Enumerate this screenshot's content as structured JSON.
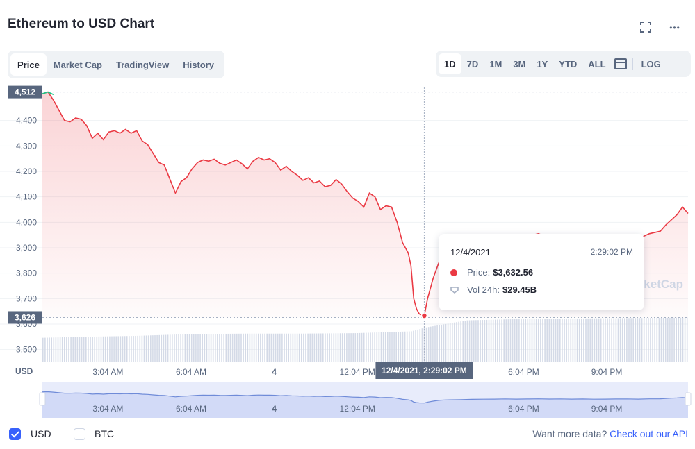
{
  "header": {
    "title": "Ethereum to USD Chart",
    "fullscreen_icon": "fullscreen-icon",
    "more_icon": "more-horizontal-icon",
    "more_glyph": "•••"
  },
  "tabs": [
    {
      "label": "Price",
      "active": true
    },
    {
      "label": "Market Cap",
      "active": false
    },
    {
      "label": "TradingView",
      "active": false
    },
    {
      "label": "History",
      "active": false
    }
  ],
  "ranges": [
    {
      "label": "1D",
      "active": true
    },
    {
      "label": "7D",
      "active": false
    },
    {
      "label": "1M",
      "active": false
    },
    {
      "label": "3M",
      "active": false
    },
    {
      "label": "1Y",
      "active": false
    },
    {
      "label": "YTD",
      "active": false
    },
    {
      "label": "ALL",
      "active": false
    }
  ],
  "calendar_icon": "calendar-icon",
  "log_label": "LOG",
  "tooltip": {
    "date": "12/4/2021",
    "time": "2:29:02 PM",
    "price_label": "Price:",
    "price_value": "$3,632.56",
    "vol_label": "Vol 24h:",
    "vol_value": "$29.45B"
  },
  "watermark": "rketCap",
  "crosshair_label": "12/4/2021, 2:29:02 PM",
  "footer": {
    "currencies": [
      {
        "label": "USD",
        "checked": true
      },
      {
        "label": "BTC",
        "checked": false
      }
    ],
    "more_text": "Want more data?",
    "api_link": "Check out our API"
  },
  "chart_data": {
    "type": "line",
    "y_axis_label": "USD",
    "ylim": [
      3450,
      4530
    ],
    "y_ticks": [
      3500,
      3600,
      3700,
      3800,
      3900,
      4000,
      4100,
      4200,
      4300,
      4400
    ],
    "y_tick_labels": [
      "3,500",
      "3,600",
      "3,700",
      "3,800",
      "3,900",
      "4,000",
      "4,100",
      "4,200",
      "4,300",
      "4,400"
    ],
    "x_range_hours": [
      0.7,
      24
    ],
    "x_ticks": [
      {
        "hour": 3.067,
        "label": "3:04 AM"
      },
      {
        "hour": 6.067,
        "label": "6:04 AM"
      },
      {
        "hour": 9.067,
        "label": "4"
      },
      {
        "hour": 12.067,
        "label": "12:04 PM"
      },
      {
        "hour": 18.067,
        "label": "6:04 PM"
      },
      {
        "hour": 21.067,
        "label": "9:04 PM"
      }
    ],
    "high_label": "4,512",
    "high_value": 4512,
    "low_label": "3,626",
    "low_value": 3626,
    "crosshair_hour": 14.48,
    "series": [
      {
        "name": "Price",
        "x": [
          0.7,
          0.9,
          1.1,
          1.3,
          1.5,
          1.7,
          1.9,
          2.1,
          2.3,
          2.5,
          2.7,
          2.9,
          3.1,
          3.3,
          3.5,
          3.7,
          3.9,
          4.1,
          4.3,
          4.5,
          4.7,
          4.9,
          5.1,
          5.3,
          5.5,
          5.7,
          5.9,
          6.1,
          6.3,
          6.5,
          6.7,
          6.9,
          7.1,
          7.3,
          7.5,
          7.7,
          7.9,
          8.1,
          8.3,
          8.5,
          8.7,
          8.9,
          9.1,
          9.3,
          9.5,
          9.7,
          9.9,
          10.1,
          10.3,
          10.5,
          10.7,
          10.9,
          11.1,
          11.3,
          11.5,
          11.7,
          11.9,
          12.1,
          12.3,
          12.5,
          12.7,
          12.9,
          13.1,
          13.3,
          13.5,
          13.7,
          13.9,
          14.0,
          14.1,
          14.2,
          14.3,
          14.48,
          14.6,
          14.8,
          15.0,
          15.2,
          15.4,
          15.8,
          16.2,
          16.6,
          17.0,
          17.4,
          17.8,
          18.2,
          18.6,
          19.0,
          19.4,
          19.8,
          20.2,
          20.6,
          21.0,
          21.4,
          21.8,
          22.2,
          22.6,
          23.0,
          23.2,
          23.4,
          23.6,
          23.8,
          24.0
        ],
        "values": [
          4505,
          4512,
          4480,
          4440,
          4400,
          4395,
          4410,
          4405,
          4380,
          4330,
          4350,
          4325,
          4355,
          4360,
          4350,
          4365,
          4350,
          4360,
          4320,
          4305,
          4270,
          4235,
          4225,
          4170,
          4115,
          4160,
          4175,
          4210,
          4235,
          4245,
          4240,
          4248,
          4232,
          4225,
          4235,
          4245,
          4230,
          4210,
          4240,
          4255,
          4245,
          4250,
          4235,
          4205,
          4220,
          4200,
          4185,
          4165,
          4175,
          4155,
          4162,
          4140,
          4145,
          4168,
          4150,
          4120,
          4095,
          4082,
          4060,
          4115,
          4100,
          4050,
          4065,
          4060,
          4000,
          3920,
          3880,
          3830,
          3700,
          3660,
          3640,
          3632.56,
          3700,
          3780,
          3840,
          3870,
          3880,
          3900,
          3920,
          3930,
          3935,
          3950,
          3935,
          3945,
          3955,
          3940,
          3950,
          3935,
          3945,
          3930,
          3935,
          3945,
          3950,
          3935,
          3955,
          3965,
          3990,
          4010,
          4030,
          4060,
          4035
        ]
      },
      {
        "name": "Vol 24h",
        "note_unit": "relative",
        "x": [
          0.7,
          2,
          4,
          6,
          8,
          10,
          12,
          14,
          14.48,
          16,
          18,
          20,
          22,
          24
        ],
        "values": [
          0.52,
          0.54,
          0.56,
          0.6,
          0.61,
          0.61,
          0.62,
          0.66,
          0.74,
          0.9,
          0.93,
          0.94,
          0.95,
          0.96
        ]
      }
    ]
  }
}
